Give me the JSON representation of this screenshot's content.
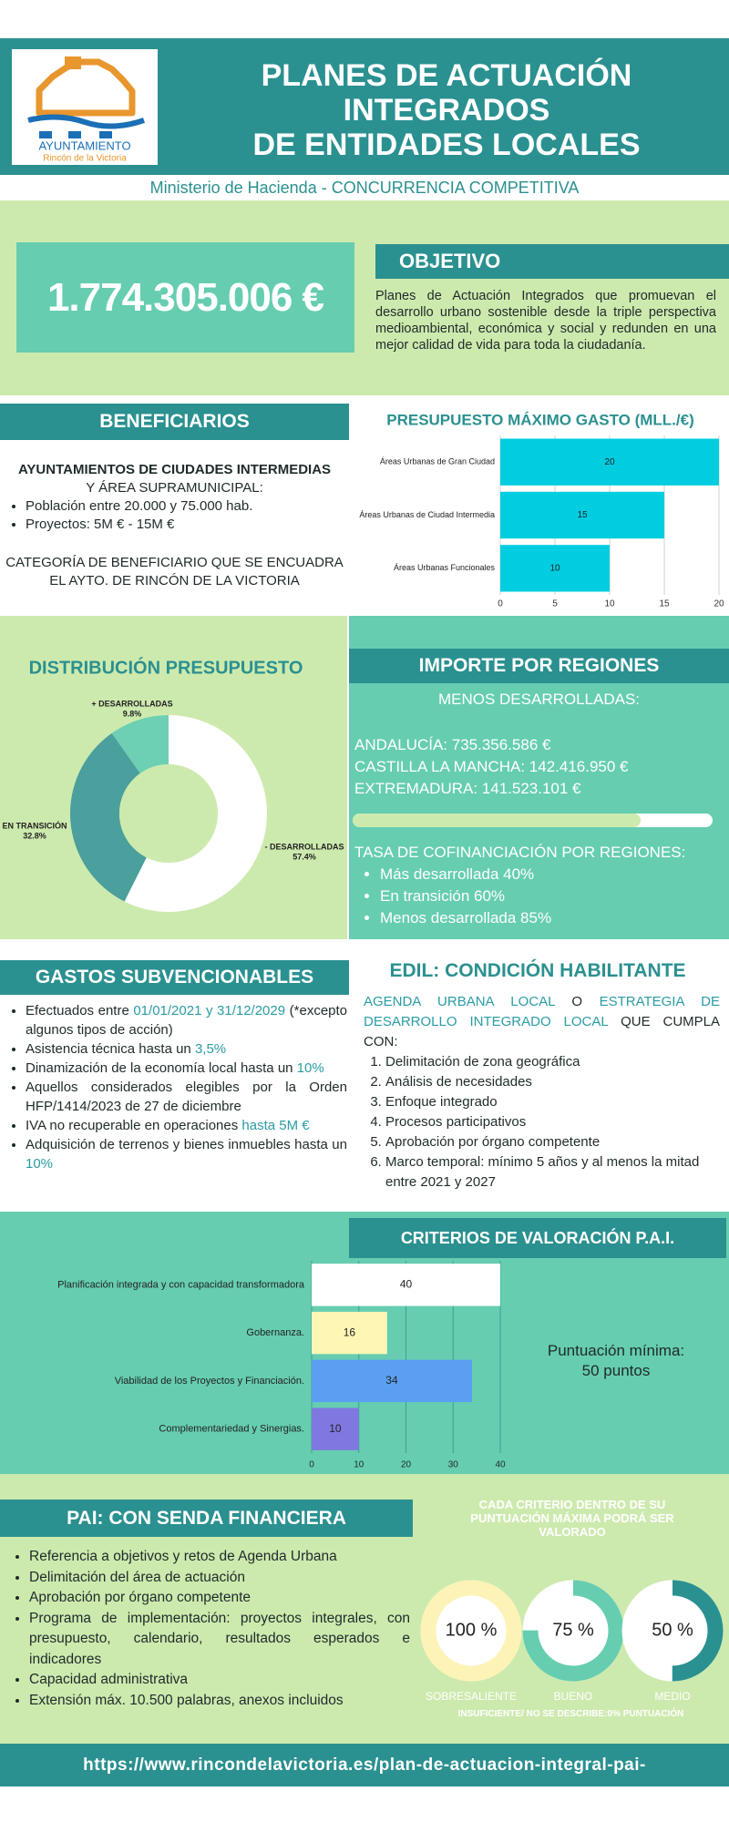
{
  "header": {
    "logo_line1": "AYUNTAMIENTO",
    "logo_line2": "Rincón de la Victoria",
    "title": [
      "PLANES DE ACTUACIÓN",
      "INTEGRADOS",
      "DE ENTIDADES LOCALES"
    ],
    "subtitle": "Ministerio de Hacienda - CONCURRENCIA COMPETITIVA"
  },
  "budget": {
    "amount": "1.774.305.006 €"
  },
  "objetivo": {
    "title": "OBJETIVO",
    "text": "Planes de Actuación Integrados que promuevan el desarrollo urbano sostenible desde la triple perspectiva medioambiental, económica y social y redunden en una mejor calidad de vida para toda la ciudadanía."
  },
  "beneficiarios": {
    "title": "BENEFICIARIOS",
    "heading1": "AYUNTAMIENTOS DE CIUDADES INTERMEDIAS",
    "heading2": "Y ÁREA SUPRAMUNICIPAL:",
    "items": [
      "Población entre 20.000 y 75.000 hab.",
      "Proyectos: 5M € - 15M €"
    ],
    "note": "CATEGORÍA DE BENEFICIARIO QUE SE ENCUADRA EL AYTO. DE RINCÓN DE LA VICTORIA"
  },
  "regiones": {
    "title": "IMPORTE POR REGIONES",
    "subtitle": "MENOS DESARROLLADAS:",
    "lines": [
      "ANDALUCÍA: 735.356.586 €",
      "CASTILLA LA MANCHA: 142.416.950 €",
      "EXTREMADURA: 141.523.101 €"
    ],
    "tasa_title": "TASA DE COFINANCIACIÓN POR REGIONES:",
    "tasa_items": [
      "Más desarrollada 40%",
      "En transición 60%",
      "Menos desarrollada 85%"
    ]
  },
  "gastos": {
    "title": "GASTOS SUBVENCIONABLES",
    "items": [
      [
        {
          "text": "Efectuados entre "
        },
        {
          "text": "01/01/2021 y 31/12/2029",
          "highlight": true
        },
        {
          "text": " (*excepto algunos tipos de acción)"
        }
      ],
      [
        {
          "text": "Asistencia técnica hasta un "
        },
        {
          "text": "3,5%",
          "highlight": true
        }
      ],
      [
        {
          "text": "Dinamización de la economía local hasta un "
        },
        {
          "text": "10%",
          "highlight": true
        }
      ],
      [
        {
          "text": "Aquellos considerados elegibles por la Orden HFP/1414/2023 de 27 de diciembre"
        }
      ],
      [
        {
          "text": "IVA no recuperable en operaciones "
        },
        {
          "text": "hasta 5M €",
          "highlight": true
        }
      ],
      [
        {
          "text": "Adquisición de terrenos y bienes inmuebles hasta un "
        },
        {
          "text": "10%",
          "highlight": true
        }
      ]
    ]
  },
  "edil": {
    "title": "EDIL: CONDICIÓN HABILITANTE",
    "intro": [
      {
        "text": "AGENDA URBANA LOCAL",
        "highlight": true
      },
      {
        "text": " O "
      },
      {
        "text": "ESTRATEGIA DE DESARROLLO INTEGRADO LOCAL",
        "highlight": true
      },
      {
        "text": " QUE CUMPLA CON:"
      }
    ],
    "items": [
      "Delimitación de zona geográfica",
      "Análisis de necesidades",
      "Enfoque integrado",
      "Procesos participativos",
      "Aprobación por órgano competente",
      "Marco temporal: mínimo 5 años y al menos la mitad entre 2021 y 2027"
    ]
  },
  "criterios": {
    "note": [
      "Puntuación mínima:",
      "50 puntos"
    ]
  },
  "pai": {
    "title": "PAI: CON SENDA FINANCIERA",
    "items": [
      "Referencia a objetivos y retos de Agenda Urbana",
      "Delimitación del área de actuación",
      "Aprobación por órgano competente",
      "Programa de implementación: proyectos integrales, con presupuesto, calendario, resultados esperados e indicadores",
      "Capacidad administrativa",
      "Extensión máx. 10.500 palabras, anexos incluidos"
    ],
    "footnote": "INSUFICIENTE/ NO SE DESCRIBE:0% PUNTUACIÓN"
  },
  "footer": {
    "url": "https://www.rincondelavictoria.es/plan-de-actuacion-integral-pai-"
  },
  "chart_data": [
    {
      "type": "bar",
      "title": "PRESUPUESTO MÁXIMO GASTO (MLL./€)",
      "categories": [
        "Áreas Urbanas de Gran Ciudad",
        "Áreas Urbanas de Ciudad Intermedia",
        "Áreas Urbanas Funcionales"
      ],
      "values": [
        20,
        15,
        10
      ],
      "color": "#00cde0",
      "xlim": [
        0,
        20
      ],
      "xticks": [
        0,
        5,
        10,
        15,
        20
      ],
      "grid": true
    },
    {
      "type": "donut",
      "title": "DISTRIBUCIÓN PRESUPUESTO",
      "categories": [
        "- DESARROLLADAS",
        "EN TRANSICIÓN",
        "+ DESARROLLADAS"
      ],
      "values": [
        57.4,
        32.8,
        9.8
      ],
      "value_labels": [
        "57.4%",
        "32.8%",
        "9.8%"
      ],
      "colors": [
        "#ffffff",
        "#4b9f9c",
        "#6dcfb3"
      ]
    },
    {
      "type": "bar",
      "title": "CRITERIOS DE VALORACIÓN P.A.I.",
      "categories": [
        "Planificación integrada y con capacidad transformadora",
        "Gobernanza.",
        "Viabilidad de los Proyectos y Financiación.",
        "Complementariedad y Sinergias."
      ],
      "values": [
        40,
        16,
        34,
        10
      ],
      "colors": [
        "#ffffff",
        "#fdf6b4",
        "#5b9ff2",
        "#7f78e0"
      ],
      "xlim": [
        0,
        40
      ],
      "xticks": [
        0,
        10,
        20,
        30,
        40
      ],
      "grid": true
    },
    {
      "type": "gauge",
      "title": "CADA CRITERIO DENTRO DE SU PUNTUACIÓN MÁXIMA  PODRÁ SER VALORADO",
      "categories": [
        "SOBRESALIENTE",
        "BUENO",
        "MEDIO"
      ],
      "values": [
        100,
        75,
        50
      ],
      "value_labels": [
        "100 %",
        "75 %",
        "50 %"
      ],
      "colors": [
        "#fdf3b6",
        "#66cdb0",
        "#2b9090"
      ]
    }
  ]
}
